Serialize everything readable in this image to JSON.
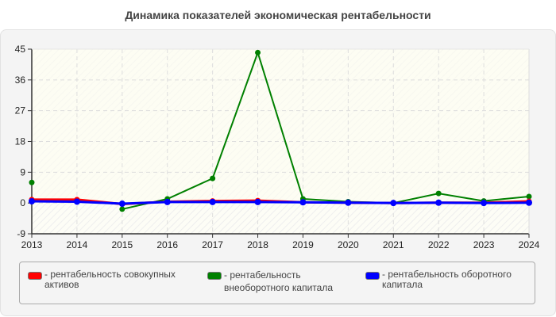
{
  "title": "Динамика показателей экономическая рентабельности",
  "chart_data": {
    "type": "line",
    "title": "Динамика показателей экономическая рентабельности",
    "xlabel": "",
    "ylabel": "",
    "x": [
      2013,
      2014,
      2015,
      2016,
      2017,
      2018,
      2019,
      2020,
      2021,
      2022,
      2023,
      2024
    ],
    "ylim": [
      -9,
      45
    ],
    "yticks": [
      -9,
      0,
      9,
      18,
      27,
      36,
      45
    ],
    "grid": true,
    "legend_position": "bottom",
    "series": [
      {
        "name": "рентабельность совокупных активов",
        "color": "#ff0000",
        "values": [
          1.0,
          1.0,
          -0.3,
          0.4,
          0.6,
          0.7,
          0.2,
          0.1,
          0.0,
          0.1,
          0.1,
          0.5
        ]
      },
      {
        "name": "рентабельность внеоборотного капитала",
        "color": "#008000",
        "values": [
          6.0,
          null,
          -1.8,
          1.2,
          7.2,
          44.0,
          1.2,
          0.4,
          0.0,
          2.8,
          0.6,
          1.9
        ]
      },
      {
        "name": "рентабельность оборотного капитала",
        "color": "#0000ff",
        "values": [
          0.5,
          0.4,
          -0.2,
          0.3,
          0.3,
          0.3,
          0.2,
          0.1,
          0.0,
          0.1,
          0.0,
          0.1
        ]
      }
    ]
  },
  "legend": [
    {
      "label": "- рентабельность совокупных активов",
      "color": "#ff0000"
    },
    {
      "label": "- рентабельность внеоборотного капитала",
      "color": "#008000"
    },
    {
      "label": "- рентабельность оборотного капитала",
      "color": "#0000ff"
    }
  ]
}
